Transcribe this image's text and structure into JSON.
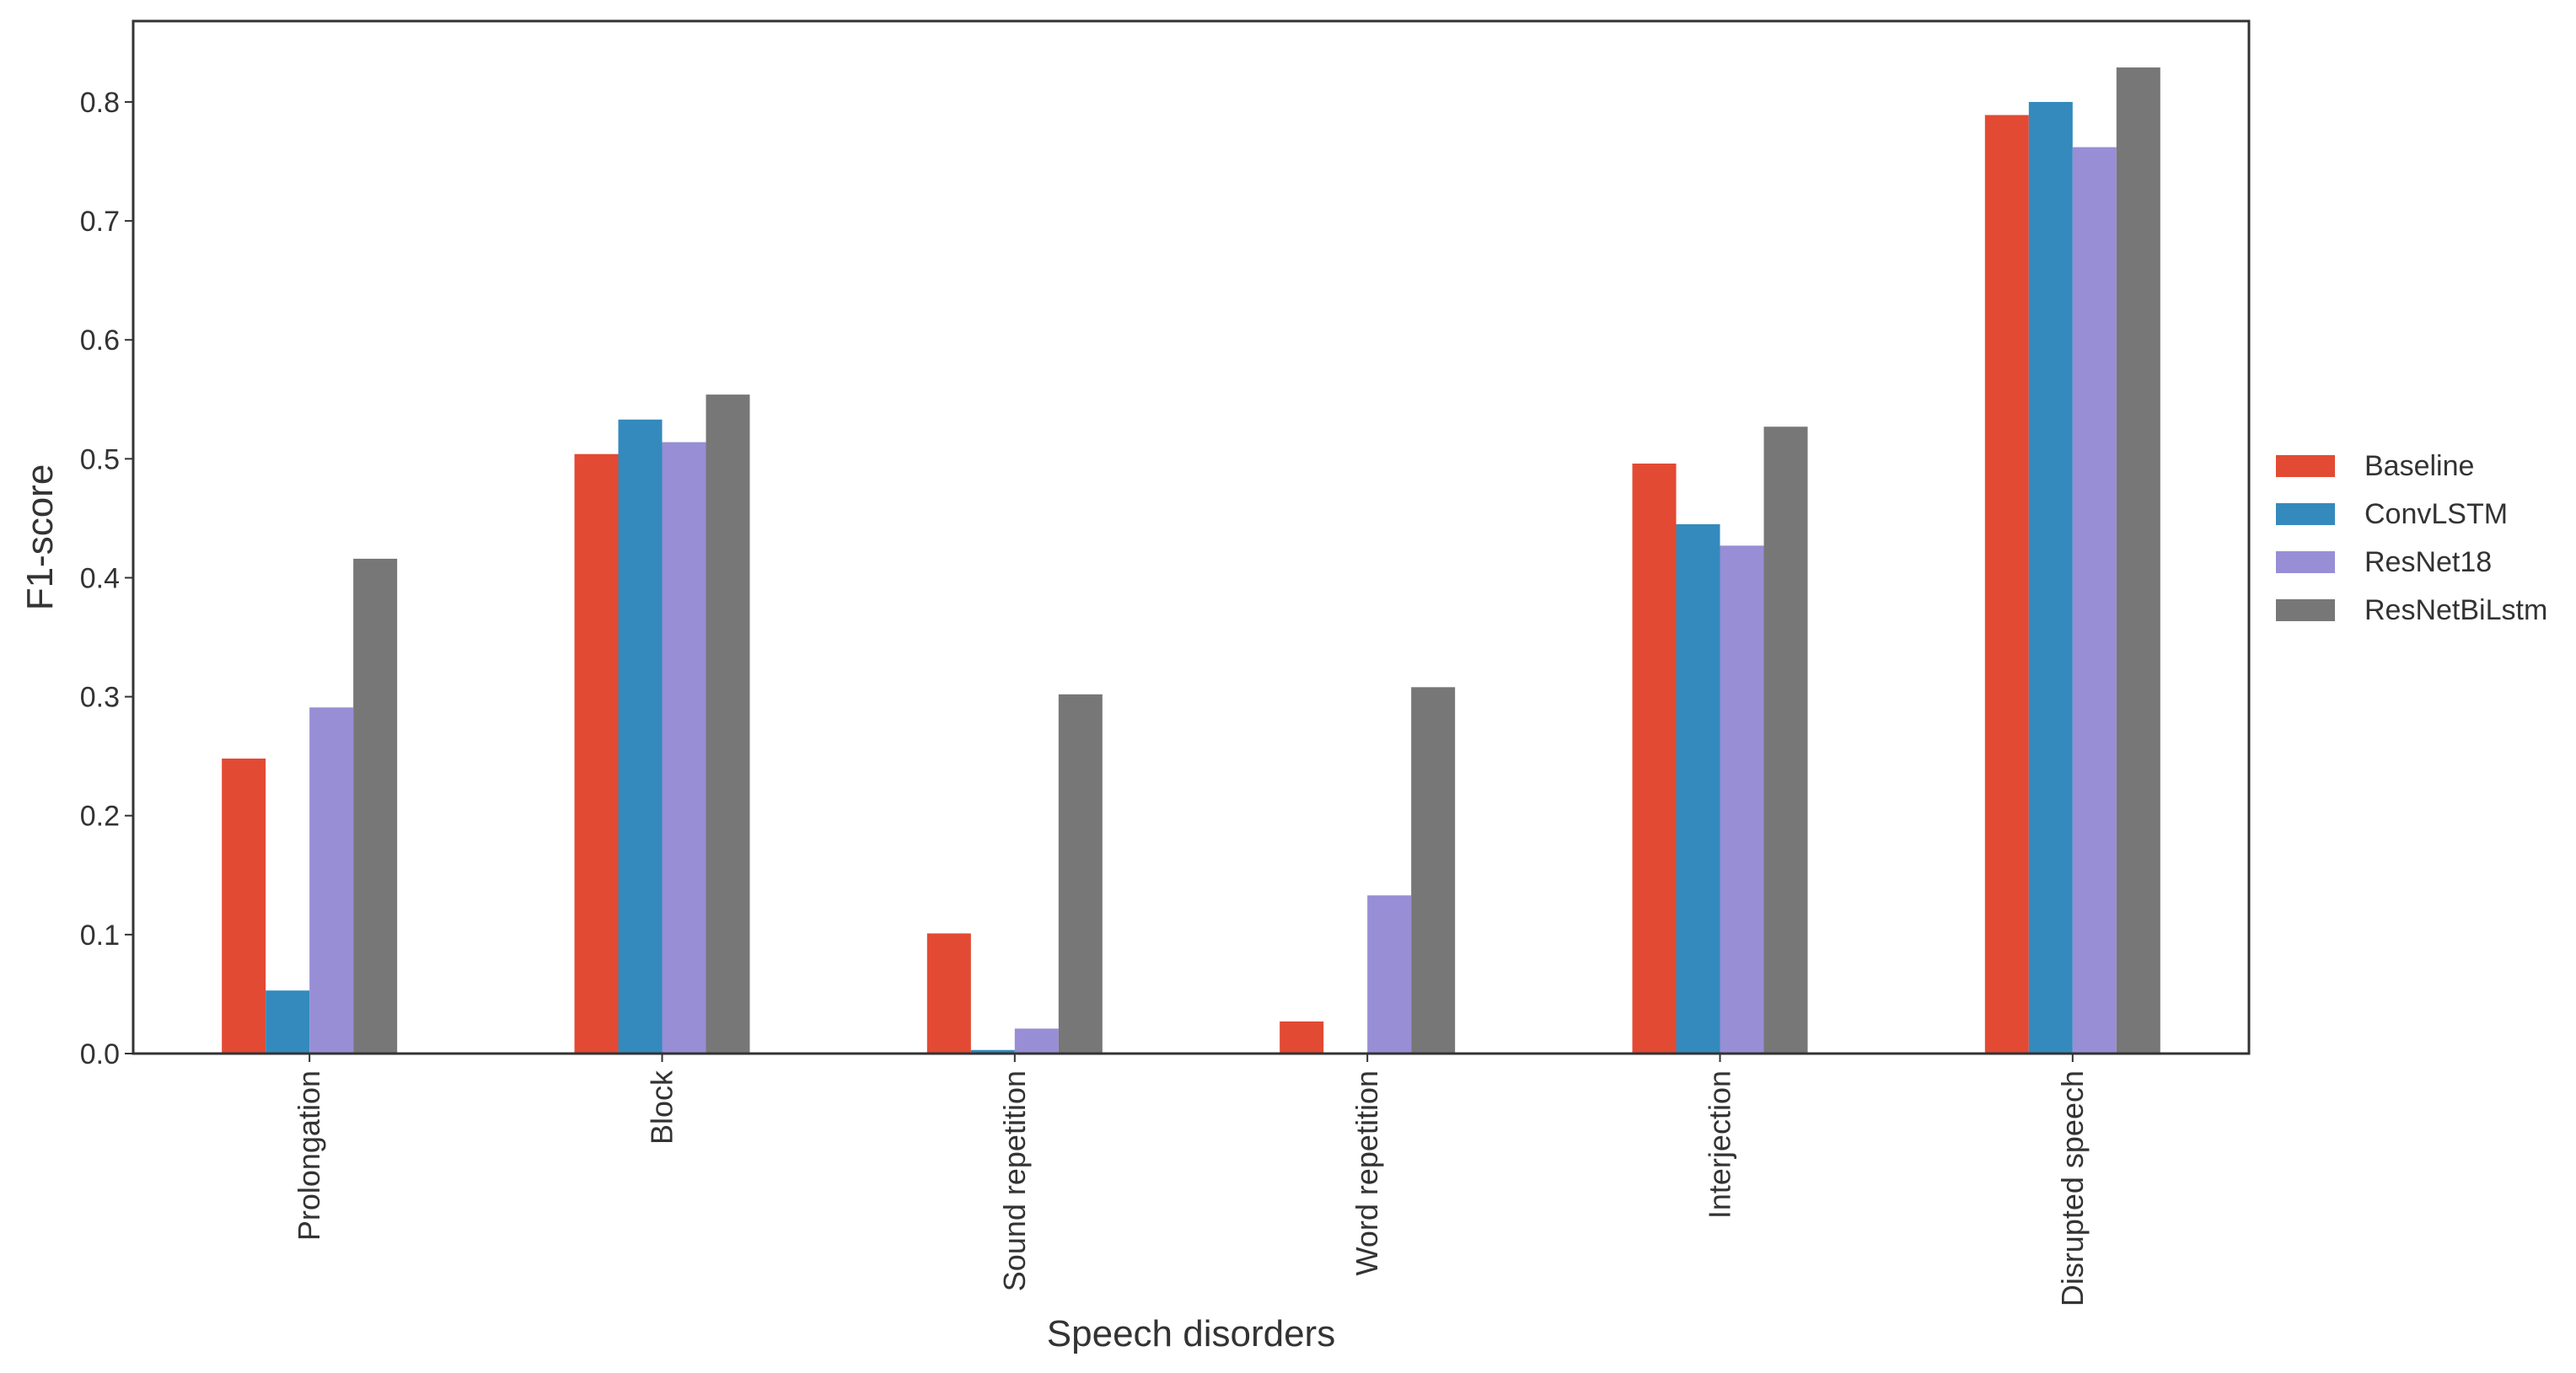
{
  "chart_data": {
    "type": "bar",
    "title": "",
    "xlabel": "Speech disorders",
    "ylabel": "F1-score",
    "ylim": [
      0,
      0.868
    ],
    "yticks": [
      "0.0",
      "0.1",
      "0.2",
      "0.3",
      "0.4",
      "0.5",
      "0.6",
      "0.7",
      "0.8"
    ],
    "grid": false,
    "legend_position": "center-right, outside",
    "categories": [
      "Prolongation",
      "Block",
      "Sound repetition",
      "Word repetition",
      "Interjection",
      "Disrupted speech"
    ],
    "series": [
      {
        "name": "Baseline",
        "color": "#E24A33",
        "values": [
          0.248,
          0.504,
          0.101,
          0.027,
          0.496,
          0.789
        ]
      },
      {
        "name": "ConvLSTM",
        "color": "#348ABD",
        "values": [
          0.053,
          0.533,
          0.003,
          0.0,
          0.445,
          0.8
        ]
      },
      {
        "name": "ResNet18",
        "color": "#988ED5",
        "values": [
          0.291,
          0.514,
          0.021,
          0.133,
          0.427,
          0.762
        ]
      },
      {
        "name": "ResNetBiLstm",
        "color": "#777777",
        "values": [
          0.416,
          0.554,
          0.302,
          0.308,
          0.527,
          0.829
        ]
      }
    ]
  }
}
